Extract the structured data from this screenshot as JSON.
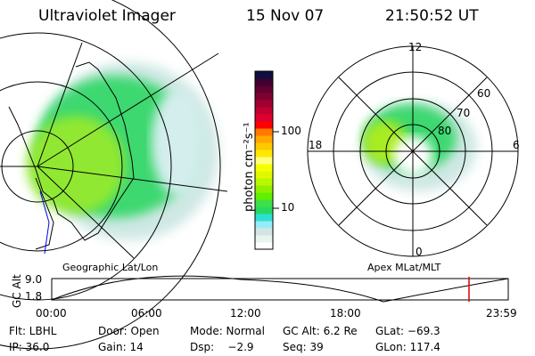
{
  "header": {
    "instrument": "Ultraviolet Imager",
    "date": "15 Nov 07",
    "time": "21:50:52 UT"
  },
  "colorbar": {
    "label": "photon cm⁻²s⁻¹",
    "ticks": [
      "100",
      "10"
    ],
    "colors": [
      "#ffffff",
      "#e8f4ee",
      "#d4e4e4",
      "#96eef4",
      "#2ee0d4",
      "#28d860",
      "#3ee048",
      "#60f000",
      "#90f000",
      "#b8f800",
      "#e0f800",
      "#f4ff00",
      "#ffff80",
      "#ffe800",
      "#ffc800",
      "#ffa800",
      "#ff7800",
      "#ff0000",
      "#e00030",
      "#c00030",
      "#a00030",
      "#800030",
      "#600030",
      "#400030",
      "#101040"
    ]
  },
  "polar": {
    "mlt_labels": [
      "12",
      "18",
      "6",
      "0"
    ],
    "lat_labels": [
      "60",
      "70",
      "80"
    ]
  },
  "labels": {
    "left_caption": "Geographic Lat/Lon",
    "right_caption": "Apex MLat/MLT"
  },
  "orbit_plot": {
    "ylabel": "GC Alt",
    "yticks": [
      "9.0",
      "1.8"
    ],
    "xticks": [
      "00:00",
      "06:00",
      "12:00",
      "18:00",
      "23:59"
    ],
    "current_marker_color": "#e00000"
  },
  "status": {
    "filter": "Flt: LBHL",
    "door": "Door: Open",
    "mode": "Mode: Normal",
    "gc_alt": "GC Alt: 6.2 Re",
    "glat": "GLat: −69.3",
    "ip": "IP: 36.0",
    "gain": "Gain: 14",
    "dsp": "Dsp:    −2.9",
    "seq": "Seq: 39",
    "glon": "GLon: 117.4"
  }
}
